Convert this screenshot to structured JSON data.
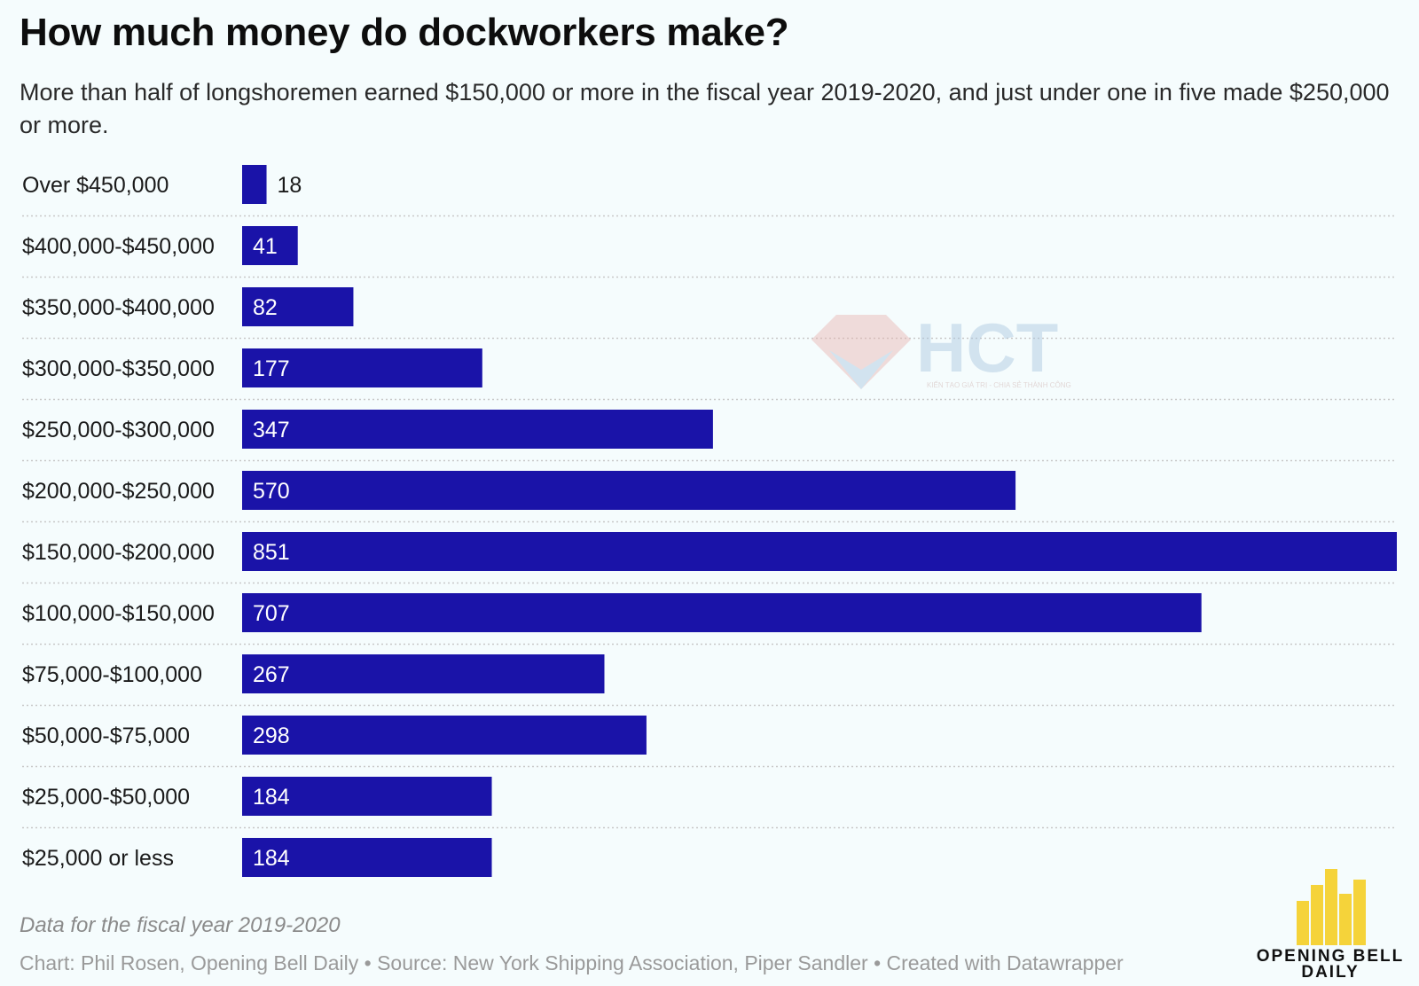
{
  "title": "How much money do dockworkers make?",
  "subtitle": "More than half of longshoremen earned $150,000 or more in the fiscal year 2019-2020, and just under one in five made $250,000 or more.",
  "chart_data": {
    "type": "bar",
    "orientation": "horizontal",
    "categories": [
      "Over $450,000",
      "$400,000-$450,000",
      "$350,000-$400,000",
      "$300,000-$350,000",
      "$250,000-$300,000",
      "$200,000-$250,000",
      "$150,000-$200,000",
      "$100,000-$150,000",
      "$75,000-$100,000",
      "$50,000-$75,000",
      "$25,000-$50,000",
      "$25,000 or less"
    ],
    "values": [
      18,
      41,
      82,
      177,
      347,
      570,
      851,
      707,
      267,
      298,
      184,
      184
    ],
    "xlim": [
      0,
      851
    ],
    "bar_color": "#1a13a8",
    "label_inside_color": "#ffffff",
    "label_outside_color": "#1a1a1a",
    "grid": false,
    "row_separators": true
  },
  "watermark": {
    "text": "HCT",
    "tagline": "KIẾN TẠO GIÁ TRỊ - CHIA SẺ THÀNH CÔNG"
  },
  "footer": {
    "note": "Data for the fiscal year 2019-2020",
    "source": "Chart: Phil Rosen, Opening Bell Daily • Source: New York Shipping Association, Piper Sandler • Created with Datawrapper"
  },
  "brand": {
    "name_line1": "OPENING BELL",
    "name_line2": "DAILY",
    "icon": "bar-chart-logo-icon",
    "color": "#f5d33a"
  }
}
